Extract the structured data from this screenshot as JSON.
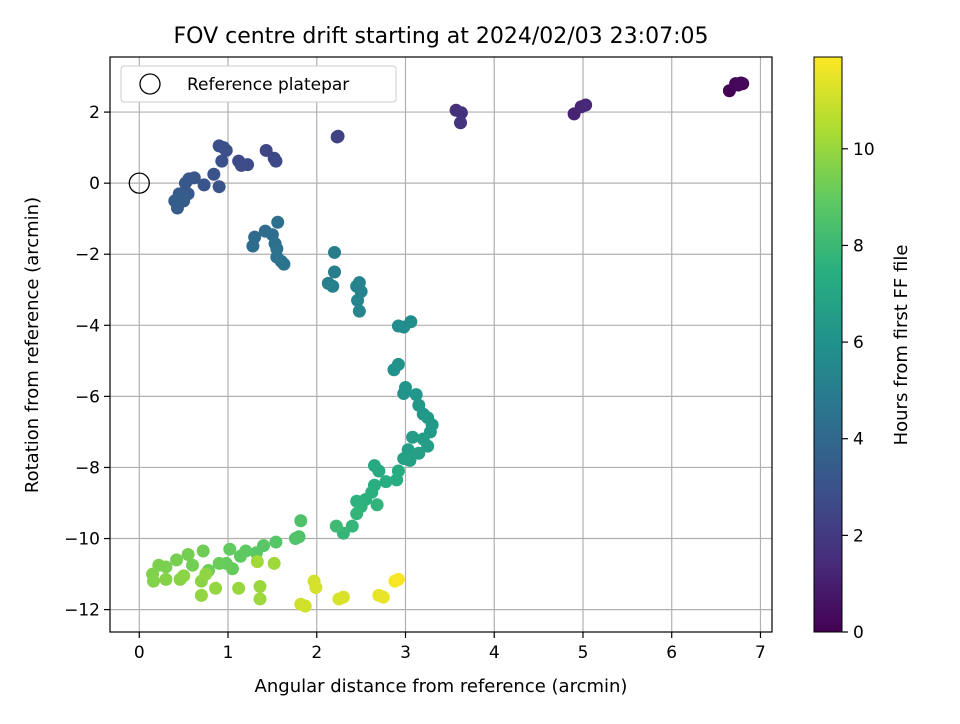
{
  "chart_data": {
    "type": "scatter",
    "title": "FOV centre drift starting at 2024/02/03 23:07:05",
    "xlabel": "Angular distance from reference (arcmin)",
    "ylabel": "Rotation from reference (arcmin)",
    "xlim": [
      -0.33,
      7.13
    ],
    "ylim": [
      -12.63,
      3.55
    ],
    "xticks": [
      0,
      1,
      2,
      3,
      4,
      5,
      6,
      7
    ],
    "yticks": [
      -12,
      -10,
      -8,
      -6,
      -4,
      -2,
      0,
      2
    ],
    "grid": true,
    "legend": {
      "position": "top-left",
      "entries": [
        {
          "label": "Reference platepar",
          "marker": "open-circle"
        }
      ]
    },
    "reference_point": {
      "x": 0,
      "y": 0
    },
    "colorbar": {
      "label": "Hours from first FF file",
      "colormap": "viridis",
      "range": [
        0,
        11.9
      ],
      "ticks": [
        0,
        2,
        4,
        6,
        8,
        10
      ]
    },
    "points": [
      {
        "x": 6.65,
        "y": 2.6,
        "hours": 0.05
      },
      {
        "x": 6.72,
        "y": 2.8,
        "hours": 0.1
      },
      {
        "x": 6.78,
        "y": 2.82,
        "hours": 0.15
      },
      {
        "x": 6.75,
        "y": 2.76,
        "hours": 0.2
      },
      {
        "x": 6.8,
        "y": 2.8,
        "hours": 0.25
      },
      {
        "x": 4.9,
        "y": 1.95,
        "hours": 1.2
      },
      {
        "x": 4.98,
        "y": 2.15,
        "hours": 1.3
      },
      {
        "x": 5.03,
        "y": 2.2,
        "hours": 1.35
      },
      {
        "x": 3.57,
        "y": 2.05,
        "hours": 1.6
      },
      {
        "x": 3.63,
        "y": 1.98,
        "hours": 1.7
      },
      {
        "x": 3.62,
        "y": 1.7,
        "hours": 1.8
      },
      {
        "x": 2.24,
        "y": 1.32,
        "hours": 2.3
      },
      {
        "x": 2.23,
        "y": 1.3,
        "hours": 2.35
      },
      {
        "x": 1.43,
        "y": 0.92,
        "hours": 2.5
      },
      {
        "x": 1.52,
        "y": 0.7,
        "hours": 2.55
      },
      {
        "x": 1.54,
        "y": 0.62,
        "hours": 2.6
      },
      {
        "x": 1.12,
        "y": 0.62,
        "hours": 2.65
      },
      {
        "x": 1.15,
        "y": 0.5,
        "hours": 2.7
      },
      {
        "x": 1.22,
        "y": 0.52,
        "hours": 2.75
      },
      {
        "x": 0.9,
        "y": 1.05,
        "hours": 2.8
      },
      {
        "x": 0.95,
        "y": 1.0,
        "hours": 2.85
      },
      {
        "x": 0.98,
        "y": 0.92,
        "hours": 2.9
      },
      {
        "x": 0.93,
        "y": 0.62,
        "hours": 2.95
      },
      {
        "x": 0.84,
        "y": 0.25,
        "hours": 3.0
      },
      {
        "x": 0.9,
        "y": -0.1,
        "hours": 3.05
      },
      {
        "x": 0.73,
        "y": -0.05,
        "hours": 3.1
      },
      {
        "x": 0.62,
        "y": 0.15,
        "hours": 3.15
      },
      {
        "x": 0.56,
        "y": 0.12,
        "hours": 3.2
      },
      {
        "x": 0.52,
        "y": 0.0,
        "hours": 3.25
      },
      {
        "x": 0.55,
        "y": -0.3,
        "hours": 3.3
      },
      {
        "x": 0.5,
        "y": -0.5,
        "hours": 3.35
      },
      {
        "x": 0.45,
        "y": -0.3,
        "hours": 3.4
      },
      {
        "x": 0.4,
        "y": -0.5,
        "hours": 3.45
      },
      {
        "x": 0.43,
        "y": -0.7,
        "hours": 3.5
      },
      {
        "x": 0.5,
        "y": -0.4,
        "hours": 3.55
      },
      {
        "x": 1.3,
        "y": -1.52,
        "hours": 4.1
      },
      {
        "x": 1.28,
        "y": -1.77,
        "hours": 4.15
      },
      {
        "x": 1.42,
        "y": -1.35,
        "hours": 4.2
      },
      {
        "x": 1.5,
        "y": -1.45,
        "hours": 4.25
      },
      {
        "x": 1.56,
        "y": -1.1,
        "hours": 4.3
      },
      {
        "x": 1.53,
        "y": -1.7,
        "hours": 4.35
      },
      {
        "x": 1.55,
        "y": -1.85,
        "hours": 4.4
      },
      {
        "x": 1.55,
        "y": -2.08,
        "hours": 4.45
      },
      {
        "x": 1.6,
        "y": -2.2,
        "hours": 4.5
      },
      {
        "x": 1.63,
        "y": -2.28,
        "hours": 4.55
      },
      {
        "x": 2.2,
        "y": -1.95,
        "hours": 5.0
      },
      {
        "x": 2.2,
        "y": -2.5,
        "hours": 5.05
      },
      {
        "x": 2.13,
        "y": -2.82,
        "hours": 5.1
      },
      {
        "x": 2.18,
        "y": -2.9,
        "hours": 5.15
      },
      {
        "x": 2.45,
        "y": -2.9,
        "hours": 5.2
      },
      {
        "x": 2.48,
        "y": -2.8,
        "hours": 5.25
      },
      {
        "x": 2.5,
        "y": -3.05,
        "hours": 5.3
      },
      {
        "x": 2.46,
        "y": -3.3,
        "hours": 5.35
      },
      {
        "x": 2.48,
        "y": -3.6,
        "hours": 5.4
      },
      {
        "x": 2.92,
        "y": -4.02,
        "hours": 5.7
      },
      {
        "x": 2.98,
        "y": -4.05,
        "hours": 5.75
      },
      {
        "x": 3.06,
        "y": -3.9,
        "hours": 5.8
      },
      {
        "x": 2.87,
        "y": -5.25,
        "hours": 6.0
      },
      {
        "x": 2.92,
        "y": -5.1,
        "hours": 6.05
      },
      {
        "x": 2.98,
        "y": -5.92,
        "hours": 6.1
      },
      {
        "x": 3.0,
        "y": -5.75,
        "hours": 6.15
      },
      {
        "x": 3.12,
        "y": -5.95,
        "hours": 6.2
      },
      {
        "x": 3.15,
        "y": -6.25,
        "hours": 6.25
      },
      {
        "x": 3.2,
        "y": -6.5,
        "hours": 6.3
      },
      {
        "x": 3.25,
        "y": -6.6,
        "hours": 6.35
      },
      {
        "x": 3.3,
        "y": -6.8,
        "hours": 6.4
      },
      {
        "x": 3.28,
        "y": -7.0,
        "hours": 6.45
      },
      {
        "x": 3.08,
        "y": -7.15,
        "hours": 6.5
      },
      {
        "x": 3.2,
        "y": -7.2,
        "hours": 6.55
      },
      {
        "x": 3.25,
        "y": -7.4,
        "hours": 6.6
      },
      {
        "x": 3.03,
        "y": -7.5,
        "hours": 6.65
      },
      {
        "x": 3.15,
        "y": -7.6,
        "hours": 6.7
      },
      {
        "x": 2.98,
        "y": -7.75,
        "hours": 6.75
      },
      {
        "x": 3.05,
        "y": -7.8,
        "hours": 6.8
      },
      {
        "x": 2.65,
        "y": -7.95,
        "hours": 7.2
      },
      {
        "x": 2.7,
        "y": -8.1,
        "hours": 7.25
      },
      {
        "x": 2.92,
        "y": -8.1,
        "hours": 7.3
      },
      {
        "x": 2.9,
        "y": -8.35,
        "hours": 7.35
      },
      {
        "x": 2.78,
        "y": -8.4,
        "hours": 7.4
      },
      {
        "x": 2.65,
        "y": -8.5,
        "hours": 7.45
      },
      {
        "x": 2.62,
        "y": -8.7,
        "hours": 7.5
      },
      {
        "x": 2.55,
        "y": -8.9,
        "hours": 7.55
      },
      {
        "x": 2.45,
        "y": -8.95,
        "hours": 7.6
      },
      {
        "x": 2.5,
        "y": -9.1,
        "hours": 7.65
      },
      {
        "x": 2.68,
        "y": -9.05,
        "hours": 7.7
      },
      {
        "x": 2.45,
        "y": -9.3,
        "hours": 7.75
      },
      {
        "x": 2.4,
        "y": -9.65,
        "hours": 7.8
      },
      {
        "x": 2.3,
        "y": -9.85,
        "hours": 7.85
      },
      {
        "x": 2.22,
        "y": -9.65,
        "hours": 8.1
      },
      {
        "x": 1.82,
        "y": -9.5,
        "hours": 8.5
      },
      {
        "x": 1.8,
        "y": -9.95,
        "hours": 8.55
      },
      {
        "x": 1.76,
        "y": -10.0,
        "hours": 8.6
      },
      {
        "x": 1.54,
        "y": -10.1,
        "hours": 8.7
      },
      {
        "x": 1.4,
        "y": -10.2,
        "hours": 8.75
      },
      {
        "x": 1.32,
        "y": -10.4,
        "hours": 8.8
      },
      {
        "x": 1.2,
        "y": -10.35,
        "hours": 8.9
      },
      {
        "x": 1.14,
        "y": -10.5,
        "hours": 8.95
      },
      {
        "x": 1.02,
        "y": -10.3,
        "hours": 9.0
      },
      {
        "x": 0.98,
        "y": -10.7,
        "hours": 9.05
      },
      {
        "x": 1.05,
        "y": -10.85,
        "hours": 9.1
      },
      {
        "x": 0.9,
        "y": -10.7,
        "hours": 9.15
      },
      {
        "x": 0.78,
        "y": -10.9,
        "hours": 9.2
      },
      {
        "x": 0.72,
        "y": -10.35,
        "hours": 9.25
      },
      {
        "x": 0.6,
        "y": -10.75,
        "hours": 9.3
      },
      {
        "x": 0.55,
        "y": -10.45,
        "hours": 9.35
      },
      {
        "x": 0.42,
        "y": -10.6,
        "hours": 9.4
      },
      {
        "x": 0.3,
        "y": -10.8,
        "hours": 9.45
      },
      {
        "x": 0.22,
        "y": -10.75,
        "hours": 9.5
      },
      {
        "x": 0.15,
        "y": -11.0,
        "hours": 9.55
      },
      {
        "x": 0.16,
        "y": -11.2,
        "hours": 9.6
      },
      {
        "x": 0.3,
        "y": -11.15,
        "hours": 9.65
      },
      {
        "x": 0.46,
        "y": -11.15,
        "hours": 9.7
      },
      {
        "x": 0.5,
        "y": -11.05,
        "hours": 9.75
      },
      {
        "x": 0.7,
        "y": -11.2,
        "hours": 9.8
      },
      {
        "x": 0.75,
        "y": -11.0,
        "hours": 9.85
      },
      {
        "x": 0.7,
        "y": -11.6,
        "hours": 9.9
      },
      {
        "x": 0.86,
        "y": -11.4,
        "hours": 9.95
      },
      {
        "x": 1.12,
        "y": -11.4,
        "hours": 10.0
      },
      {
        "x": 1.36,
        "y": -11.35,
        "hours": 10.05
      },
      {
        "x": 1.36,
        "y": -11.7,
        "hours": 10.1
      },
      {
        "x": 1.52,
        "y": -10.7,
        "hours": 10.15
      },
      {
        "x": 1.33,
        "y": -10.65,
        "hours": 10.2
      },
      {
        "x": 1.82,
        "y": -11.85,
        "hours": 11.0
      },
      {
        "x": 1.87,
        "y": -11.9,
        "hours": 11.05
      },
      {
        "x": 1.97,
        "y": -11.2,
        "hours": 11.1
      },
      {
        "x": 1.99,
        "y": -11.38,
        "hours": 11.15
      },
      {
        "x": 2.25,
        "y": -11.7,
        "hours": 11.2
      },
      {
        "x": 2.3,
        "y": -11.65,
        "hours": 11.25
      },
      {
        "x": 2.7,
        "y": -11.6,
        "hours": 11.5
      },
      {
        "x": 2.75,
        "y": -11.65,
        "hours": 11.55
      },
      {
        "x": 2.88,
        "y": -11.2,
        "hours": 11.7
      },
      {
        "x": 2.92,
        "y": -11.15,
        "hours": 11.8
      }
    ]
  }
}
